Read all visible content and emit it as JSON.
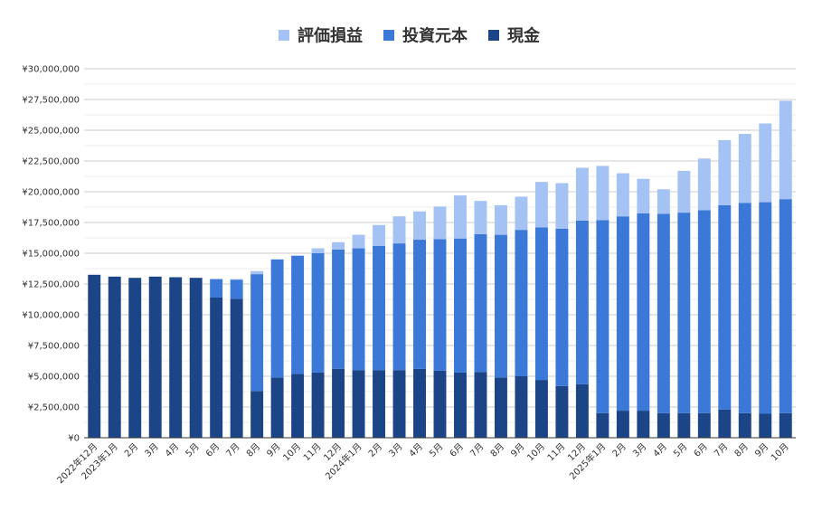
{
  "colors": {
    "unrealized": "#a4c2f4",
    "principal": "#3c78d8",
    "cash": "#1c4587",
    "grid": "#cccccc",
    "axis": "#333333"
  },
  "chart_data": {
    "type": "bar",
    "stacked": true,
    "legend": [
      "評価損益",
      "投資元本",
      "現金"
    ],
    "legend_position": "top",
    "grid": true,
    "ylim": [
      0,
      30000000
    ],
    "yticks": [
      "¥0",
      "¥2,500,000",
      "¥5,000,000",
      "¥7,500,000",
      "¥10,000,000",
      "¥12,500,000",
      "¥15,000,000",
      "¥17,500,000",
      "¥20,000,000",
      "¥22,500,000",
      "¥25,000,000",
      "¥27,500,000",
      "¥30,000,000"
    ],
    "categories": [
      "2022年12月",
      "2023年1月",
      "2月",
      "3月",
      "4月",
      "5月",
      "6月",
      "7月",
      "8月",
      "9月",
      "10月",
      "11月",
      "12月",
      "2024年1月",
      "2月",
      "3月",
      "4月",
      "5月",
      "6月",
      "7月",
      "8月",
      "9月",
      "10月",
      "11月",
      "12月",
      "2025年1月",
      "2月",
      "3月",
      "4月",
      "5月",
      "6月",
      "7月",
      "8月",
      "9月",
      "10月"
    ],
    "series": [
      {
        "name": "現金",
        "values": [
          13250000,
          13100000,
          13000000,
          13100000,
          13050000,
          13000000,
          11400000,
          11300000,
          3800000,
          4900000,
          5200000,
          5300000,
          5600000,
          5500000,
          5500000,
          5500000,
          5600000,
          5450000,
          5300000,
          5350000,
          4900000,
          5000000,
          4700000,
          4200000,
          4350000,
          2000000,
          2200000,
          2200000,
          2000000,
          2000000,
          2000000,
          2300000,
          2000000,
          1950000,
          2000000
        ]
      },
      {
        "name": "投資元本",
        "values": [
          0,
          0,
          0,
          0,
          0,
          0,
          1500000,
          1550000,
          9500000,
          9600000,
          9600000,
          9700000,
          9700000,
          9900000,
          10100000,
          10300000,
          10500000,
          10700000,
          10900000,
          11200000,
          11600000,
          11900000,
          12400000,
          12800000,
          13300000,
          15700000,
          15800000,
          16050000,
          16200000,
          16300000,
          16500000,
          16600000,
          17100000,
          17200000,
          17400000
        ]
      },
      {
        "name": "評価損益",
        "values": [
          0,
          0,
          0,
          0,
          0,
          0,
          0,
          50000,
          250000,
          0,
          0,
          400000,
          600000,
          1100000,
          1700000,
          2200000,
          2300000,
          2650000,
          3500000,
          2700000,
          2400000,
          2700000,
          3700000,
          3700000,
          4300000,
          4400000,
          3500000,
          2800000,
          2000000,
          3400000,
          4200000,
          5300000,
          5600000,
          6400000,
          8000000
        ]
      }
    ]
  }
}
